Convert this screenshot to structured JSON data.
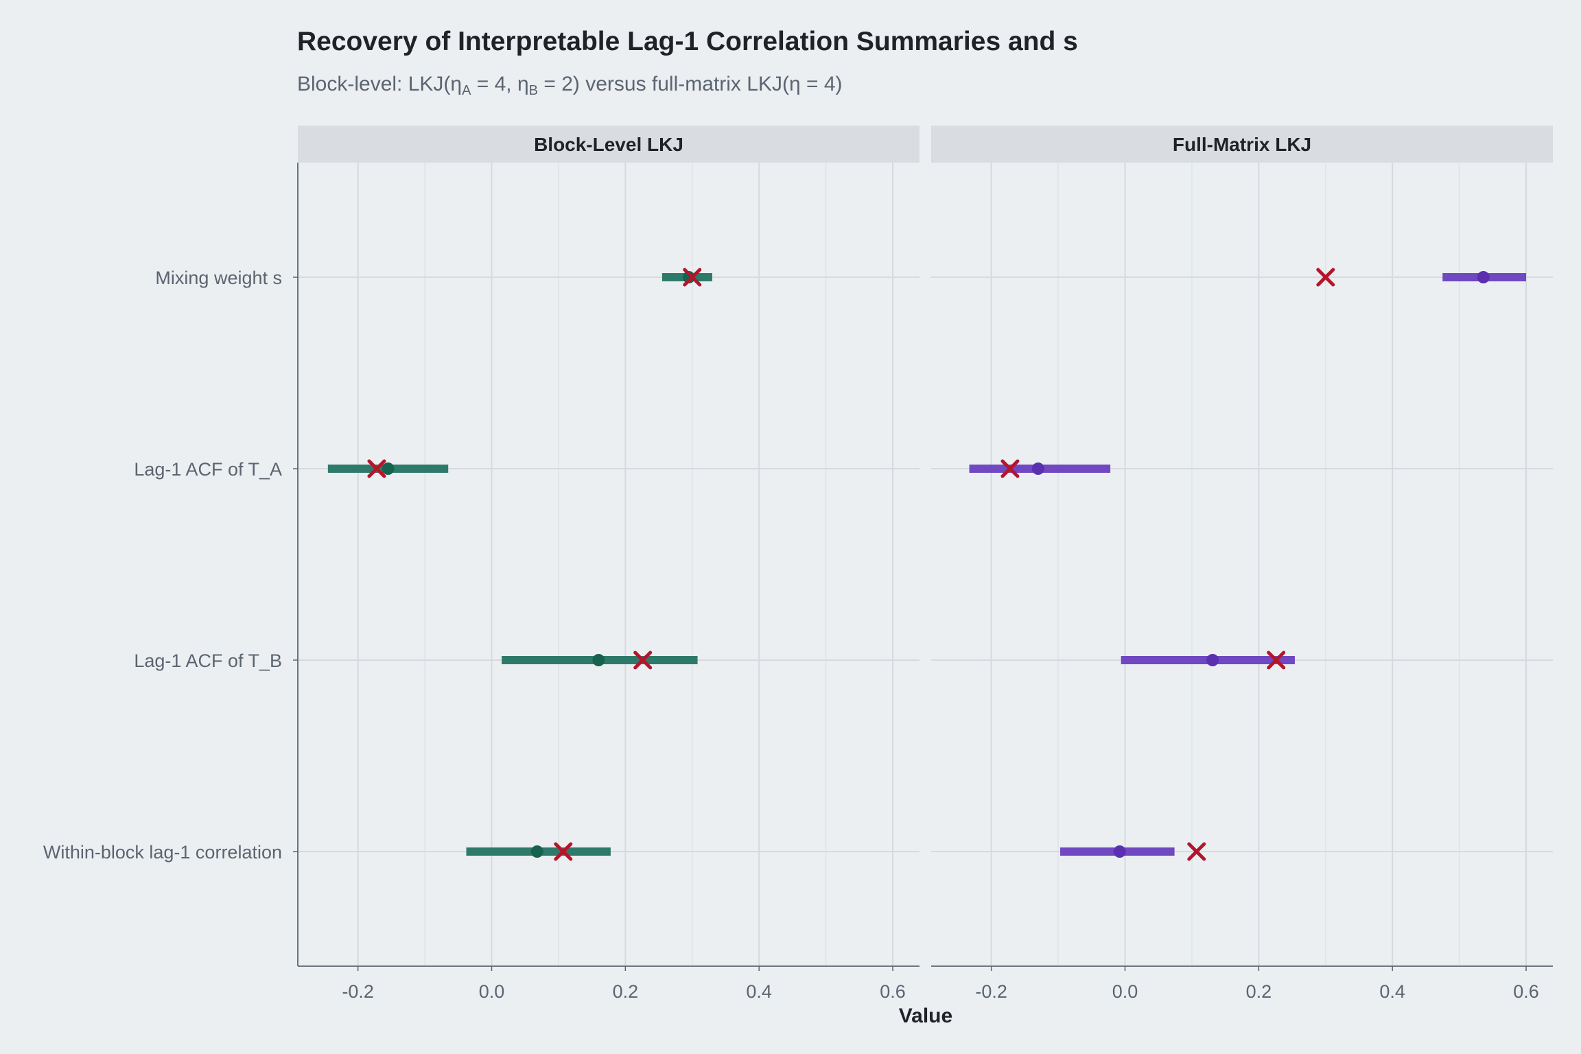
{
  "chart_data": {
    "type": "dot-interval",
    "title": "Recovery of Interpretable Lag-1 Correlation Summaries and s",
    "subtitle": {
      "prefix": "Block-level: LKJ(",
      "eta": "η",
      "sub_a": "A",
      "part_a": " = 4, ",
      "sub_b": "B",
      "part_b": " = 2) versus full-matrix LKJ(",
      "part_c": " = 4)"
    },
    "xlabel": "Value",
    "xlim": [
      -0.29,
      0.64
    ],
    "xticks": [
      -0.2,
      0.0,
      0.2,
      0.4,
      0.6
    ],
    "xtick_labels": [
      "-0.2",
      "0.0",
      "0.2",
      "0.4",
      "0.6"
    ],
    "categories": [
      "Mixing weight s",
      "Lag-1 ACF of T_A",
      "Lag-1 ACF of T_B",
      "Within-block lag-1 correlation"
    ],
    "truth_marker": "x",
    "truth_color": "#b5152b",
    "panels": [
      {
        "name": "Block-Level LKJ",
        "color": "#2e7a6a",
        "point_color": "#17614f",
        "estimate": [
          0.295,
          -0.155,
          0.16,
          0.068
        ],
        "lower": [
          0.255,
          -0.245,
          0.015,
          -0.038
        ],
        "upper": [
          0.33,
          -0.065,
          0.308,
          0.178
        ],
        "truth": [
          0.3,
          -0.172,
          0.226,
          0.107
        ]
      },
      {
        "name": "Full-Matrix LKJ",
        "color": "#6f48c2",
        "point_color": "#5a2fb0",
        "estimate": [
          0.536,
          -0.13,
          0.131,
          -0.008
        ],
        "lower": [
          0.475,
          -0.233,
          -0.006,
          -0.097
        ],
        "upper": [
          0.6,
          -0.022,
          0.254,
          0.074
        ],
        "truth": [
          0.3,
          -0.172,
          0.226,
          0.107
        ]
      }
    ]
  }
}
